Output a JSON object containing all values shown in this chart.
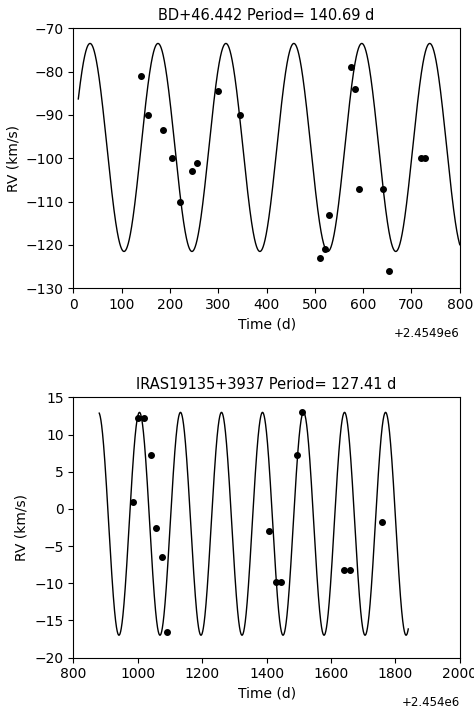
{
  "plot1": {
    "title": "BD+46.442 Period= 140.69 d",
    "period": 140.69,
    "amplitude": 24.0,
    "mean": -97.5,
    "t_peak": 175.0,
    "t_start": 10,
    "t_end": 800,
    "xlim": [
      0,
      800
    ],
    "ylim": [
      -130,
      -70
    ],
    "xticks": [
      0,
      100,
      200,
      300,
      400,
      500,
      600,
      700,
      800
    ],
    "yticks": [
      -130,
      -120,
      -110,
      -100,
      -90,
      -80,
      -70
    ],
    "xlabel": "Time (d)",
    "ylabel": "RV (km/s)",
    "offset_text": "+2.4549e6",
    "obs_t": [
      140,
      155,
      185,
      205,
      220,
      245,
      255,
      300,
      345,
      510,
      520,
      530,
      575,
      582,
      592,
      640,
      653,
      720,
      728
    ],
    "obs_rv": [
      -81,
      -90,
      -93.5,
      -100,
      -110,
      -103,
      -101,
      -84.5,
      -90,
      -123,
      -121,
      -113,
      -79,
      -84,
      -107,
      -107,
      -126,
      -100,
      -100
    ]
  },
  "plot2": {
    "title": "IRAS19135+3937 Period= 127.41 d",
    "period": 127.41,
    "amplitude": 15.0,
    "mean": -2.0,
    "t_peak": 1005.0,
    "t_start": 880,
    "t_end": 1840,
    "xlim": [
      800,
      2000
    ],
    "ylim": [
      -20,
      15
    ],
    "xticks": [
      800,
      1000,
      1200,
      1400,
      1600,
      1800,
      2000
    ],
    "yticks": [
      -20,
      -15,
      -10,
      -5,
      0,
      5,
      10,
      15
    ],
    "xlabel": "Time (d)",
    "ylabel": "RV (km/s)",
    "offset_text": "+2.454e6",
    "obs_t": [
      985,
      1000,
      1020,
      1040,
      1055,
      1075,
      1090,
      1408,
      1428,
      1445,
      1495,
      1510,
      1640,
      1660,
      1758
    ],
    "obs_rv": [
      1.0,
      12.2,
      12.2,
      7.2,
      -2.5,
      -6.5,
      -16.5,
      -3.0,
      -9.8,
      -9.8,
      7.2,
      13.0,
      -8.2,
      -8.2,
      -1.8
    ]
  }
}
